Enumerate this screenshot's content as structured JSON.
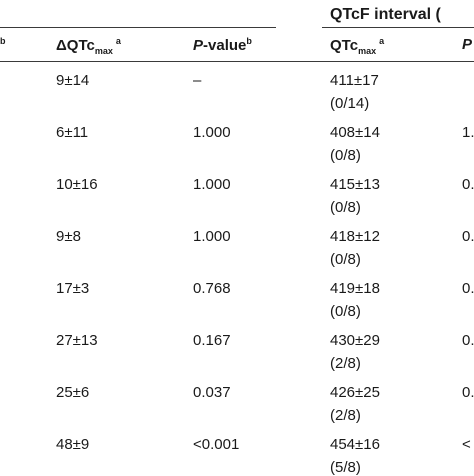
{
  "table": {
    "group_header": "QTcF interval (",
    "col_headers": {
      "left_sup": "b",
      "dqtc": {
        "delta": "Δ",
        "main": "QTc",
        "sub": "max",
        "sup": "a"
      },
      "pvalue": {
        "italic": "P",
        "rest": "-value",
        "sup": "b"
      },
      "qtcf": {
        "main": "QTc",
        "sub": "max",
        "sup": "a"
      },
      "p_cut": "P"
    },
    "rows": [
      {
        "dqtc": "9±14",
        "pvalue": "–",
        "qtcf": "411±17",
        "count": "(0/14)",
        "cut": ""
      },
      {
        "dqtc": "6±11",
        "pvalue": "1.000",
        "qtcf": "408±14",
        "count": "(0/8)",
        "cut": "1."
      },
      {
        "dqtc": "10±16",
        "pvalue": "1.000",
        "qtcf": "415±13",
        "count": "(0/8)",
        "cut": "0."
      },
      {
        "dqtc": "9±8",
        "pvalue": "1.000",
        "qtcf": "418±12",
        "count": "(0/8)",
        "cut": "0."
      },
      {
        "dqtc": "17±3",
        "pvalue": "0.768",
        "qtcf": "419±18",
        "count": "(0/8)",
        "cut": "0."
      },
      {
        "dqtc": "27±13",
        "pvalue": "0.167",
        "qtcf": "430±29",
        "count": "(2/8)",
        "cut": "0."
      },
      {
        "dqtc": "25±6",
        "pvalue": "0.037",
        "qtcf": "426±25",
        "count": "(2/8)",
        "cut": "0."
      },
      {
        "dqtc": "48±9",
        "pvalue": "<0.001",
        "qtcf": "454±16",
        "count": "(5/8)",
        "cut": "<"
      }
    ]
  }
}
